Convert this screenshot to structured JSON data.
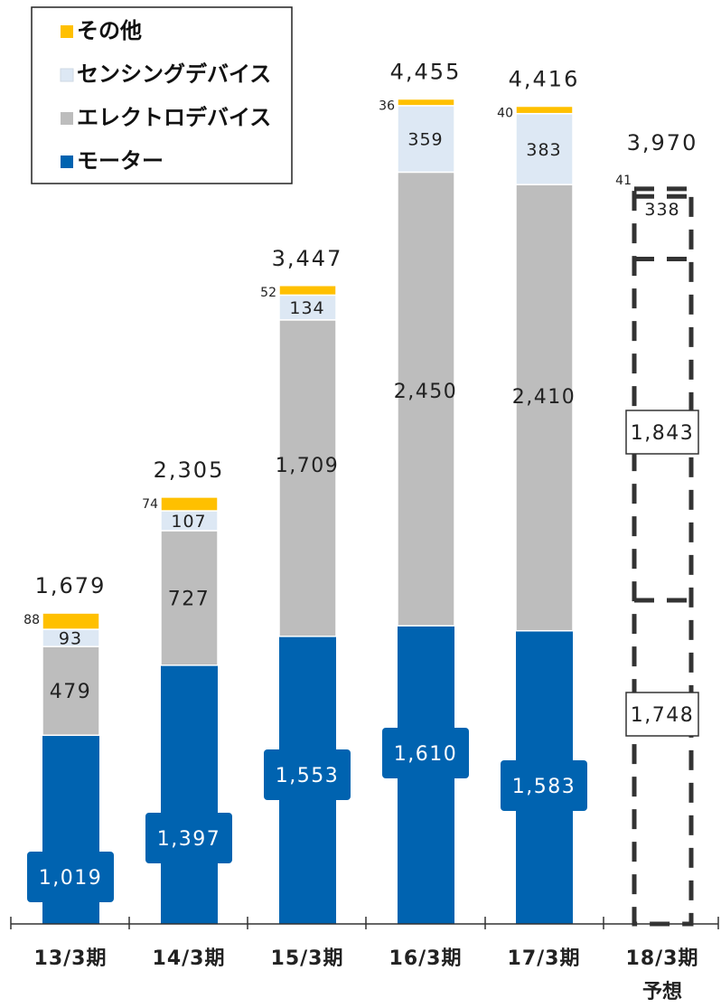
{
  "chart_data": {
    "type": "bar",
    "stacked": true,
    "categories": [
      "13/3期",
      "14/3期",
      "15/3期",
      "16/3期",
      "17/3期",
      "18/3期"
    ],
    "forecast_label": "予想",
    "totals": [
      "1,679",
      "2,305",
      "3,447",
      "4,455",
      "4,416",
      "3,970"
    ],
    "series": [
      {
        "name": "モーター",
        "values": [
          1019,
          1397,
          1553,
          1610,
          1583,
          1748
        ],
        "labels": [
          "1,019",
          "1,397",
          "1,553",
          "1,610",
          "1,583",
          "1,748"
        ],
        "color": "#0063B0"
      },
      {
        "name": "エレクトロデバイス",
        "values": [
          479,
          727,
          1709,
          2450,
          2410,
          1843
        ],
        "labels": [
          "479",
          "727",
          "1,709",
          "2,450",
          "2,410",
          "1,843"
        ],
        "color": "#BDBDBD"
      },
      {
        "name": "センシングデバイス",
        "values": [
          93,
          107,
          134,
          359,
          383,
          338
        ],
        "labels": [
          "93",
          "107",
          "134",
          "359",
          "383",
          "338"
        ],
        "color": "#DDE8F4"
      },
      {
        "name": "その他",
        "values": [
          88,
          74,
          52,
          36,
          40,
          41
        ],
        "labels": [
          "88",
          "74",
          "52",
          "36",
          "40",
          "41"
        ],
        "color": "#FFC000"
      }
    ],
    "legend_order": [
      3,
      2,
      1,
      0
    ],
    "forecast_index": 5,
    "ylim": [
      0,
      4560
    ],
    "grid": false,
    "legend_position": "top-left"
  }
}
